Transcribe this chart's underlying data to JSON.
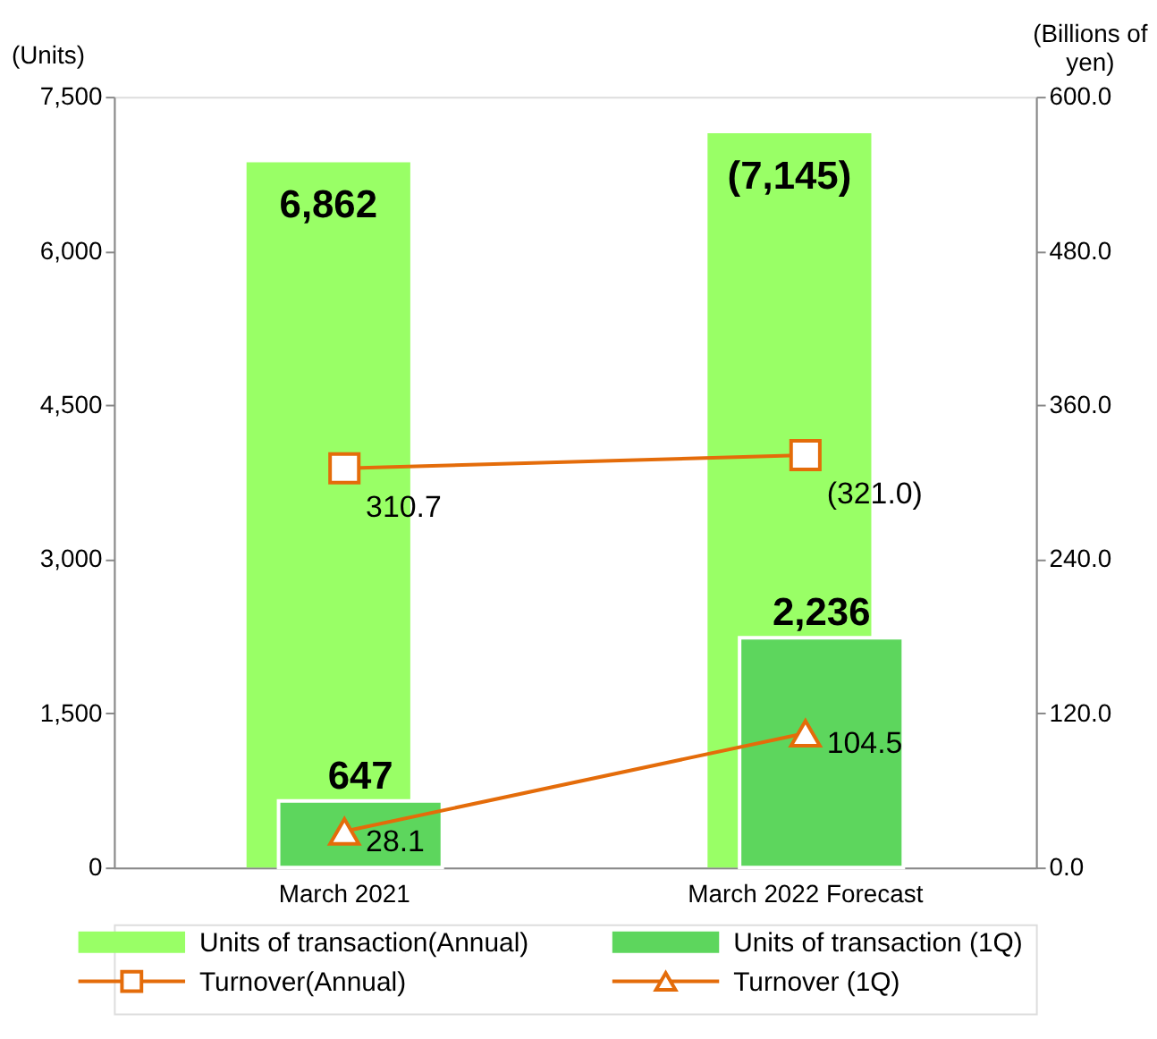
{
  "chart_data": {
    "type": "bar",
    "ylabel": "(Units)",
    "y2label": "(Billions of\nyen)",
    "categories": [
      "March 2021",
      "March 2022 Forecast"
    ],
    "series": [
      {
        "name": "Units of transaction(Annual)",
        "color": "#99ff66",
        "values": [
          6862,
          7145
        ],
        "value_labels": [
          "6,862",
          "(7,145)"
        ]
      },
      {
        "name": "Units of transaction (1Q)",
        "color": "#5dd65d",
        "values": [
          647,
          2236
        ],
        "value_labels": [
          "647",
          "2,236"
        ]
      },
      {
        "name": "Turnover(Annual)",
        "type": "line",
        "axis": "y2",
        "color": "#e46c0a",
        "marker": "square",
        "values": [
          310.7,
          321.0
        ],
        "value_labels": [
          "310.7",
          "(321.0)"
        ]
      },
      {
        "name": "Turnover (1Q)",
        "type": "line",
        "axis": "y2",
        "color": "#e46c0a",
        "marker": "triangle",
        "values": [
          28.1,
          104.5
        ],
        "value_labels": [
          "28.1",
          "104.5"
        ]
      }
    ],
    "ylim": [
      0,
      7500
    ],
    "yticks": [
      0,
      {
        "value": 1500,
        "label": "1,500"
      },
      {
        "value": 3000,
        "label": "3,000"
      },
      {
        "value": 4500,
        "label": "4,500"
      },
      {
        "value": 6000,
        "label": "6,000"
      },
      {
        "value": 7500,
        "label": "7,500"
      }
    ],
    "y2lim": [
      0,
      600
    ],
    "y2ticks": [
      {
        "value": 0,
        "label": "0.0"
      },
      {
        "value": 120,
        "label": "120.0"
      },
      {
        "value": 240,
        "label": "240.0"
      },
      {
        "value": 360,
        "label": "360.0"
      },
      {
        "value": 480,
        "label": "480.0"
      },
      {
        "value": 600,
        "label": "600.0"
      }
    ],
    "legend": "bottom",
    "grid": false
  }
}
